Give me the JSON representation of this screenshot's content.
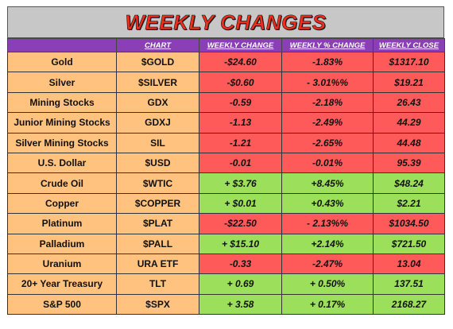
{
  "title": "WEEKLY CHANGES",
  "headers": [
    "",
    "CHART",
    "WEEKLY CHANGE",
    "WEEKLY % CHANGE",
    "WEEKLY CLOSE"
  ],
  "colors": {
    "down": "#ff5a5a",
    "up": "#9bdf5a",
    "label_bg": "#ffc27f",
    "header_bg": "#8a3fb5",
    "title_bg": "#c7c7c7",
    "title_text": "#ef2d1d"
  },
  "rows": [
    {
      "name": "Gold",
      "symbol": "$GOLD",
      "change": "-$24.60",
      "pct": "-1.83%",
      "close": "$1317.10",
      "dir": "down"
    },
    {
      "name": "Silver",
      "symbol": "$SILVER",
      "change": "-$0.60",
      "pct": "- 3.01%%",
      "close": "$19.21",
      "dir": "down"
    },
    {
      "name": "Mining Stocks",
      "symbol": "GDX",
      "change": "-0.59",
      "pct": "-2.18%",
      "close": "26.43",
      "dir": "down"
    },
    {
      "name": "Junior Mining Stocks",
      "symbol": "GDXJ",
      "change": "-1.13",
      "pct": "-2.49%",
      "close": "44.29",
      "dir": "down"
    },
    {
      "name": "Silver Mining Stocks",
      "symbol": "SIL",
      "change": "-1.21",
      "pct": "-2.65%",
      "close": "44.48",
      "dir": "down"
    },
    {
      "name": "U.S. Dollar",
      "symbol": "$USD",
      "change": "-0.01",
      "pct": "-0.01%",
      "close": "95.39",
      "dir": "down"
    },
    {
      "name": "Crude Oil",
      "symbol": "$WTIC",
      "change": "+ $3.76",
      "pct": "+8.45%",
      "close": "$48.24",
      "dir": "up"
    },
    {
      "name": "Copper",
      "symbol": "$COPPER",
      "change": "+ $0.01",
      "pct": "+0.43%",
      "close": "$2.21",
      "dir": "up"
    },
    {
      "name": "Platinum",
      "symbol": "$PLAT",
      "change": "-$22.50",
      "pct": "- 2.13%%",
      "close": "$1034.50",
      "dir": "down"
    },
    {
      "name": "Palladium",
      "symbol": "$PALL",
      "change": "+ $15.10",
      "pct": "+2.14%",
      "close": "$721.50",
      "dir": "up"
    },
    {
      "name": "Uranium",
      "symbol": "URA ETF",
      "change": "-0.33",
      "pct": "-2.47%",
      "close": "13.04",
      "dir": "down"
    },
    {
      "name": "20+ Year Treasury",
      "symbol": "TLT",
      "change": "+ 0.69",
      "pct": "+ 0.50%",
      "close": "137.51",
      "dir": "up"
    },
    {
      "name": "S&P 500",
      "symbol": "$SPX",
      "change": "+ 3.58",
      "pct": "+ 0.17%",
      "close": "2168.27",
      "dir": "up"
    }
  ]
}
